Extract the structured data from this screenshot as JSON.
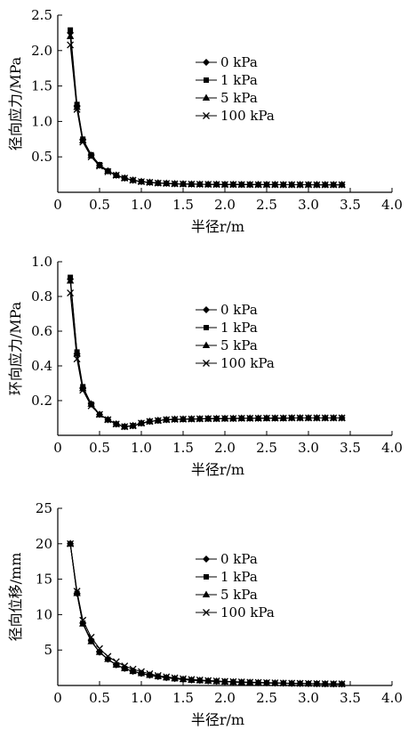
{
  "chart_data": [
    {
      "type": "line",
      "xlabel": "半径r/m",
      "ylabel": "径向应力/MPa",
      "xlim": [
        0,
        4.0
      ],
      "ylim": [
        0,
        2.5
      ],
      "xticks": [
        "0",
        "0.5",
        "1.0",
        "1.5",
        "2.0",
        "2.5",
        "3.0",
        "3.5",
        "4.0"
      ],
      "yticks": [
        "0.5",
        "1.0",
        "1.5",
        "2.0",
        "2.5"
      ],
      "grid": false,
      "legend": "upper-middle",
      "x": [
        0.15,
        0.23,
        0.3,
        0.4,
        0.5,
        0.6,
        0.7,
        0.8,
        0.9,
        1.0,
        1.1,
        1.2,
        1.3,
        1.4,
        1.5,
        1.6,
        1.7,
        1.8,
        1.9,
        2.0,
        2.1,
        2.2,
        2.3,
        2.4,
        2.5,
        2.6,
        2.7,
        2.8,
        2.9,
        3.0,
        3.1,
        3.2,
        3.3,
        3.4
      ],
      "series": [
        {
          "name": "0 kPa",
          "marker": "diamond",
          "values": [
            2.25,
            1.22,
            0.74,
            0.52,
            0.38,
            0.3,
            0.24,
            0.2,
            0.17,
            0.15,
            0.14,
            0.13,
            0.125,
            0.12,
            0.117,
            0.115,
            0.113,
            0.112,
            0.111,
            0.11,
            0.11,
            0.109,
            0.109,
            0.108,
            0.108,
            0.108,
            0.107,
            0.107,
            0.107,
            0.107,
            0.106,
            0.106,
            0.106,
            0.106
          ]
        },
        {
          "name": "1 kPa",
          "marker": "square",
          "values": [
            2.29,
            1.24,
            0.75,
            0.53,
            0.39,
            0.3,
            0.24,
            0.2,
            0.17,
            0.15,
            0.14,
            0.13,
            0.125,
            0.12,
            0.117,
            0.115,
            0.113,
            0.112,
            0.111,
            0.11,
            0.11,
            0.109,
            0.109,
            0.108,
            0.108,
            0.108,
            0.107,
            0.107,
            0.107,
            0.107,
            0.106,
            0.106,
            0.106,
            0.106
          ]
        },
        {
          "name": "5 kPa",
          "marker": "triangle",
          "values": [
            2.2,
            1.2,
            0.73,
            0.52,
            0.38,
            0.3,
            0.24,
            0.2,
            0.17,
            0.15,
            0.14,
            0.13,
            0.125,
            0.12,
            0.117,
            0.115,
            0.113,
            0.112,
            0.111,
            0.11,
            0.11,
            0.109,
            0.109,
            0.108,
            0.108,
            0.108,
            0.107,
            0.107,
            0.107,
            0.107,
            0.106,
            0.106,
            0.106,
            0.106
          ]
        },
        {
          "name": "100 kPa",
          "marker": "x",
          "values": [
            2.08,
            1.17,
            0.71,
            0.5,
            0.37,
            0.29,
            0.24,
            0.2,
            0.17,
            0.15,
            0.14,
            0.13,
            0.125,
            0.12,
            0.117,
            0.115,
            0.113,
            0.112,
            0.111,
            0.11,
            0.11,
            0.109,
            0.109,
            0.108,
            0.108,
            0.108,
            0.107,
            0.107,
            0.107,
            0.107,
            0.106,
            0.106,
            0.106,
            0.106
          ]
        }
      ]
    },
    {
      "type": "line",
      "xlabel": "半径r/m",
      "ylabel": "环向应力/MPa",
      "xlim": [
        0,
        4.0
      ],
      "ylim": [
        0,
        1.0
      ],
      "xticks": [
        "0",
        "0.5",
        "1.0",
        "1.5",
        "2.0",
        "2.5",
        "3.0",
        "3.5",
        "4.0"
      ],
      "yticks": [
        "0.2",
        "0.4",
        "0.6",
        "0.8",
        "1.0"
      ],
      "grid": false,
      "legend": "upper-middle",
      "x": [
        0.15,
        0.23,
        0.3,
        0.4,
        0.5,
        0.6,
        0.7,
        0.8,
        0.9,
        1.0,
        1.1,
        1.2,
        1.3,
        1.4,
        1.5,
        1.6,
        1.7,
        1.8,
        1.9,
        2.0,
        2.1,
        2.2,
        2.3,
        2.4,
        2.5,
        2.6,
        2.7,
        2.8,
        2.9,
        3.0,
        3.1,
        3.2,
        3.3,
        3.4
      ],
      "series": [
        {
          "name": "0 kPa",
          "marker": "diamond",
          "values": [
            0.9,
            0.47,
            0.27,
            0.18,
            0.12,
            0.09,
            0.065,
            0.05,
            0.055,
            0.07,
            0.08,
            0.085,
            0.09,
            0.092,
            0.093,
            0.094,
            0.095,
            0.096,
            0.096,
            0.097,
            0.097,
            0.098,
            0.098,
            0.098,
            0.099,
            0.099,
            0.099,
            0.1,
            0.1,
            0.1,
            0.1,
            0.1,
            0.1,
            0.1
          ]
        },
        {
          "name": "1 kPa",
          "marker": "square",
          "values": [
            0.91,
            0.48,
            0.28,
            0.18,
            0.12,
            0.09,
            0.065,
            0.05,
            0.055,
            0.07,
            0.08,
            0.085,
            0.09,
            0.092,
            0.093,
            0.094,
            0.095,
            0.096,
            0.096,
            0.097,
            0.097,
            0.098,
            0.098,
            0.098,
            0.099,
            0.099,
            0.099,
            0.1,
            0.1,
            0.1,
            0.1,
            0.1,
            0.1,
            0.1
          ]
        },
        {
          "name": "5 kPa",
          "marker": "triangle",
          "values": [
            0.89,
            0.47,
            0.27,
            0.18,
            0.12,
            0.09,
            0.065,
            0.05,
            0.055,
            0.07,
            0.08,
            0.085,
            0.09,
            0.092,
            0.093,
            0.094,
            0.095,
            0.096,
            0.096,
            0.097,
            0.097,
            0.098,
            0.098,
            0.098,
            0.099,
            0.099,
            0.099,
            0.1,
            0.1,
            0.1,
            0.1,
            0.1,
            0.1,
            0.1
          ]
        },
        {
          "name": "100 kPa",
          "marker": "x",
          "values": [
            0.82,
            0.44,
            0.26,
            0.17,
            0.12,
            0.09,
            0.065,
            0.05,
            0.055,
            0.07,
            0.08,
            0.085,
            0.09,
            0.092,
            0.093,
            0.094,
            0.095,
            0.096,
            0.096,
            0.097,
            0.097,
            0.098,
            0.098,
            0.098,
            0.099,
            0.099,
            0.099,
            0.1,
            0.1,
            0.1,
            0.1,
            0.1,
            0.1,
            0.1
          ]
        }
      ]
    },
    {
      "type": "line",
      "xlabel": "半径r/m",
      "ylabel": "径向位移/mm",
      "xlim": [
        0,
        4.0
      ],
      "ylim": [
        0,
        25
      ],
      "xticks": [
        "0",
        "0.5",
        "1.0",
        "1.5",
        "2.0",
        "2.5",
        "3.0",
        "3.5",
        "4.0"
      ],
      "yticks": [
        "5",
        "10",
        "15",
        "20",
        "25"
      ],
      "grid": false,
      "legend": "upper-middle",
      "x": [
        0.15,
        0.23,
        0.3,
        0.4,
        0.5,
        0.6,
        0.7,
        0.8,
        0.9,
        1.0,
        1.1,
        1.2,
        1.3,
        1.4,
        1.5,
        1.6,
        1.7,
        1.8,
        1.9,
        2.0,
        2.1,
        2.2,
        2.3,
        2.4,
        2.5,
        2.6,
        2.7,
        2.8,
        2.9,
        3.0,
        3.1,
        3.2,
        3.3,
        3.4
      ],
      "series": [
        {
          "name": "0 kPa",
          "marker": "diamond",
          "values": [
            20.0,
            13.0,
            8.8,
            6.3,
            4.7,
            3.7,
            2.9,
            2.4,
            2.0,
            1.7,
            1.45,
            1.25,
            1.1,
            0.97,
            0.86,
            0.77,
            0.7,
            0.64,
            0.58,
            0.53,
            0.49,
            0.45,
            0.42,
            0.39,
            0.36,
            0.33,
            0.31,
            0.29,
            0.27,
            0.25,
            0.24,
            0.22,
            0.21,
            0.2
          ]
        },
        {
          "name": "1 kPa",
          "marker": "square",
          "values": [
            20.0,
            13.0,
            8.8,
            6.3,
            4.7,
            3.7,
            2.9,
            2.4,
            2.0,
            1.7,
            1.45,
            1.25,
            1.1,
            0.97,
            0.86,
            0.77,
            0.7,
            0.64,
            0.58,
            0.53,
            0.49,
            0.45,
            0.42,
            0.39,
            0.36,
            0.33,
            0.31,
            0.29,
            0.27,
            0.25,
            0.24,
            0.22,
            0.21,
            0.2
          ]
        },
        {
          "name": "5 kPa",
          "marker": "triangle",
          "values": [
            20.0,
            13.0,
            8.7,
            6.2,
            4.7,
            3.7,
            2.9,
            2.4,
            2.0,
            1.7,
            1.45,
            1.25,
            1.1,
            0.97,
            0.86,
            0.77,
            0.7,
            0.64,
            0.58,
            0.53,
            0.49,
            0.45,
            0.42,
            0.39,
            0.36,
            0.33,
            0.31,
            0.29,
            0.27,
            0.25,
            0.24,
            0.22,
            0.21,
            0.2
          ]
        },
        {
          "name": "100 kPa",
          "marker": "x",
          "values": [
            20.0,
            13.3,
            9.2,
            6.8,
            5.2,
            4.1,
            3.35,
            2.75,
            2.3,
            1.95,
            1.65,
            1.4,
            1.22,
            1.07,
            0.95,
            0.85,
            0.77,
            0.7,
            0.64,
            0.58,
            0.54,
            0.5,
            0.46,
            0.43,
            0.4,
            0.37,
            0.34,
            0.32,
            0.3,
            0.28,
            0.26,
            0.24,
            0.23,
            0.22
          ]
        }
      ]
    }
  ]
}
